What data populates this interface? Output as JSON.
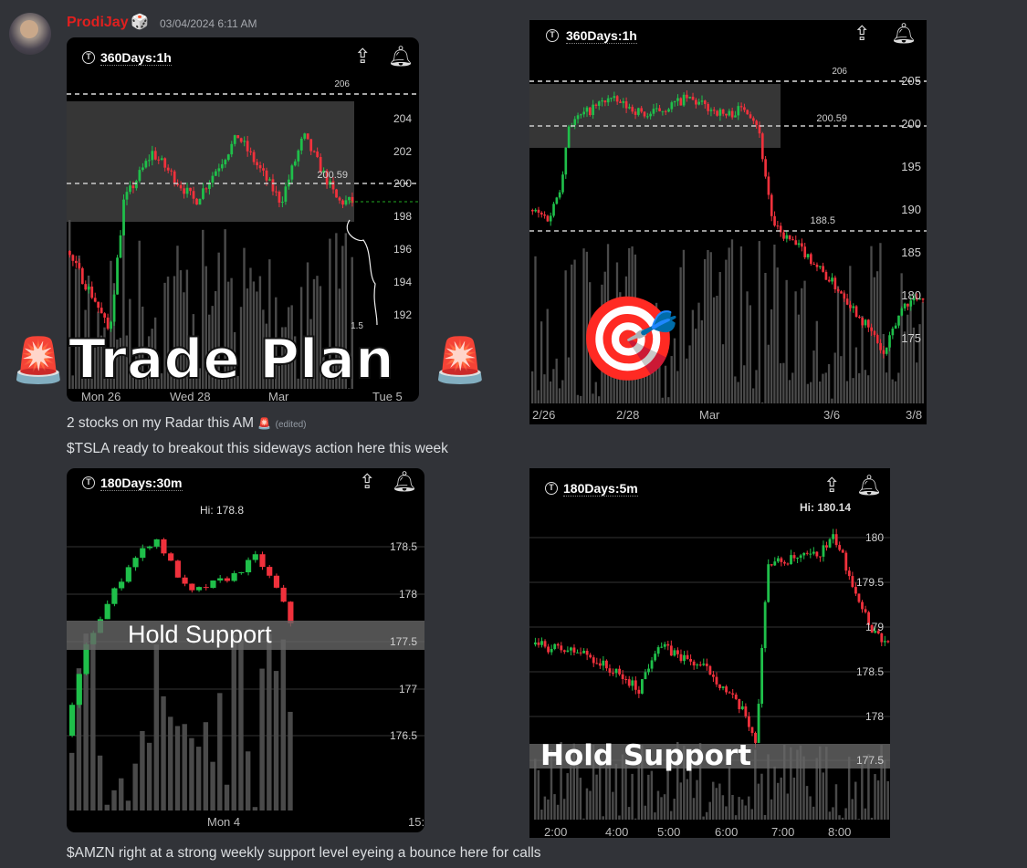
{
  "message": {
    "author": "ProdiJay",
    "author_badge": "🎲",
    "timestamp": "03/04/2024 6:11 AM",
    "overlay_text": "Trade Plan",
    "overlay_emoji": "🚨",
    "dart_emoji": "🎯",
    "line1": "2 stocks on my Radar this AM",
    "line1_emoji": "🚨",
    "edited": "(edited)",
    "line2": "$TSLA ready to breakout this sideways action here this week",
    "line3": "$AMZN right at a strong weekly support level eyeing a bounce here for calls"
  },
  "charts": [
    {
      "period": "360Days:1h",
      "prices": [
        "206",
        "204",
        "202",
        "200.59",
        "200",
        "198",
        "196",
        "194",
        "192",
        "1.5"
      ],
      "x_labels": [
        "Mon 26",
        "Wed 28",
        "Mar",
        "Tue 5"
      ]
    },
    {
      "period": "360Days:1h",
      "prices": [
        "206",
        "205",
        "200.59",
        "200",
        "195",
        "190",
        "188.5",
        "185",
        "180",
        "175"
      ],
      "x_labels": [
        "2/26",
        "2/28",
        "Mar",
        "3/6",
        "3/8"
      ]
    },
    {
      "period": "180Days:30m",
      "hi": "Hi: 178.8",
      "prices": [
        "178.5",
        "178",
        "177.5",
        "177",
        "176.5"
      ],
      "x_labels": [
        "Mon 4",
        "15:"
      ],
      "band_text": "Hold Support"
    },
    {
      "period": "180Days:5m",
      "hi": "Hi: 180.14",
      "prices": [
        "180",
        "179.5",
        "179",
        "178.5",
        "178",
        "177.5"
      ],
      "x_labels": [
        "2:00",
        "4:00",
        "5:00",
        "6:00",
        "7:00",
        "8:00"
      ],
      "band_text": "Hold Support"
    }
  ],
  "colors": {
    "up": "#1fbf4a",
    "down": "#f0313c",
    "author": "#e0201f",
    "background": "#313338"
  }
}
